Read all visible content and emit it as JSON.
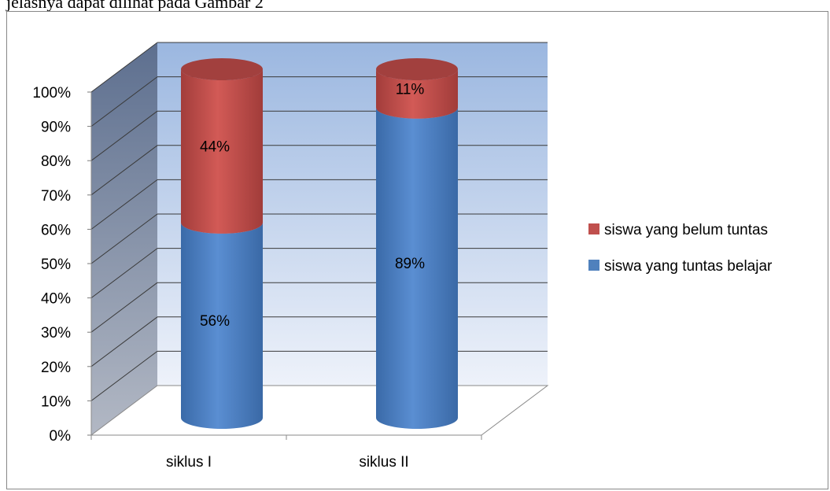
{
  "caption_fragment": "jelasnya dapat dilihat pada Gambar 2",
  "chart_data": {
    "type": "bar",
    "stacked": true,
    "style": "3d-cylinder",
    "categories": [
      "siklus I",
      "siklus II"
    ],
    "series": [
      {
        "name": "siswa yang tuntas belajar",
        "values": [
          56,
          89
        ],
        "labels": [
          "56%",
          "89%"
        ],
        "color": "#4f81bd"
      },
      {
        "name": "siswa yang belum tuntas",
        "values": [
          44,
          11
        ],
        "labels": [
          "44%",
          "11%"
        ],
        "color": "#c0504d"
      }
    ],
    "ylim": [
      0,
      100
    ],
    "yticks": [
      "0%",
      "10%",
      "20%",
      "30%",
      "40%",
      "50%",
      "60%",
      "70%",
      "80%",
      "90%",
      "100%"
    ],
    "grid": true,
    "legend": "right"
  }
}
